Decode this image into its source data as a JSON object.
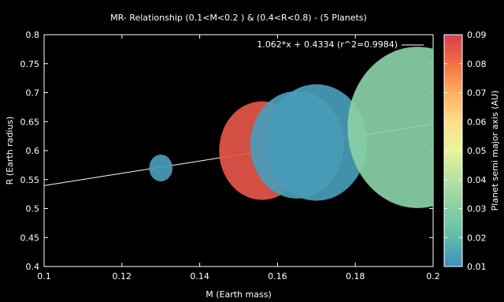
{
  "chart_data": {
    "type": "scatter",
    "title": "MR- Relationship (0.1<M<0.2 ) & (0.4<R<0.8) - (5 Planets)",
    "xlabel": "M (Earth mass)",
    "ylabel": "R (Earth radius)",
    "colorbar_label": "Planet semi major axis (AU)",
    "xlim": [
      0.1,
      0.2
    ],
    "ylim": [
      0.4,
      0.8
    ],
    "clim": [
      0.01,
      0.09
    ],
    "x_ticks": [
      0.1,
      0.12,
      0.14,
      0.16,
      0.18,
      0.2
    ],
    "y_ticks": [
      0.4,
      0.45,
      0.5,
      0.55,
      0.6,
      0.65,
      0.7,
      0.75,
      0.8
    ],
    "c_ticks": [
      0.01,
      0.02,
      0.03,
      0.04,
      0.05,
      0.06,
      0.07,
      0.08,
      0.09
    ],
    "x_tick_labels": [
      "0.1",
      "0.12",
      "0.14",
      "0.16",
      "0.18",
      "0.2"
    ],
    "y_tick_labels": [
      "0.4",
      "0.45",
      "0.5",
      "0.55",
      "0.6",
      "0.65",
      "0.7",
      "0.75",
      "0.8"
    ],
    "c_tick_labels": [
      "0.01",
      "0.02",
      "0.03",
      "0.04",
      "0.05",
      "0.06",
      "0.07",
      "0.08",
      "0.09"
    ],
    "points": [
      {
        "x": 0.13,
        "y": 0.57,
        "c": 0.013,
        "r": 0.003
      },
      {
        "x": 0.156,
        "y": 0.6,
        "c": 0.085,
        "r": 0.011
      },
      {
        "x": 0.165,
        "y": 0.61,
        "c": 0.013,
        "r": 0.012
      },
      {
        "x": 0.17,
        "y": 0.614,
        "c": 0.013,
        "r": 0.013
      },
      {
        "x": 0.196,
        "y": 0.64,
        "c": 0.03,
        "r": 0.018
      }
    ],
    "fit": {
      "slope": 1.062,
      "intercept": 0.4334
    },
    "legend": {
      "label": "1.062*x + 0.4334 (r^2=0.9984)",
      "placement": "top-right"
    },
    "grid": false
  }
}
